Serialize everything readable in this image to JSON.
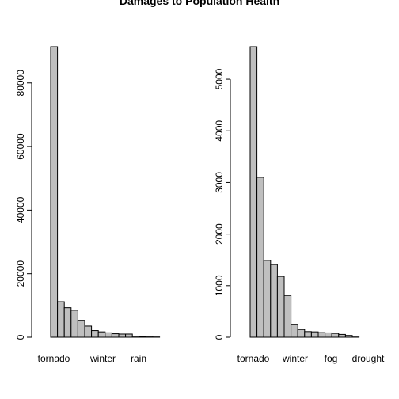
{
  "chart_data": [
    {
      "type": "bar",
      "title": "Damages to Population Health",
      "categories": [
        "tornado",
        "",
        "",
        "",
        "",
        "winter",
        "",
        "",
        "rain",
        "",
        "",
        "",
        "",
        "",
        "",
        ""
      ],
      "values": [
        91400,
        11200,
        9300,
        8500,
        5300,
        3500,
        2100,
        1700,
        1400,
        1100,
        1000,
        1000,
        300,
        150,
        100,
        80
      ],
      "ylim": [
        0,
        91400
      ],
      "yticks": [
        0,
        20000,
        40000,
        60000,
        80000
      ],
      "xlabel": "",
      "ylabel": ""
    },
    {
      "type": "bar",
      "title": "",
      "categories": [
        "tornado",
        "",
        "",
        "",
        "",
        "winter",
        "",
        "",
        "",
        "",
        "fog",
        "",
        "",
        "",
        "drought",
        ""
      ],
      "values": [
        5630,
        3100,
        1490,
        1410,
        1180,
        810,
        250,
        150,
        110,
        105,
        90,
        85,
        75,
        55,
        35,
        20
      ],
      "ylim": [
        0,
        5630
      ],
      "yticks": [
        0,
        1000,
        2000,
        3000,
        4000,
        5000
      ],
      "xlabel": "",
      "ylabel": ""
    }
  ]
}
